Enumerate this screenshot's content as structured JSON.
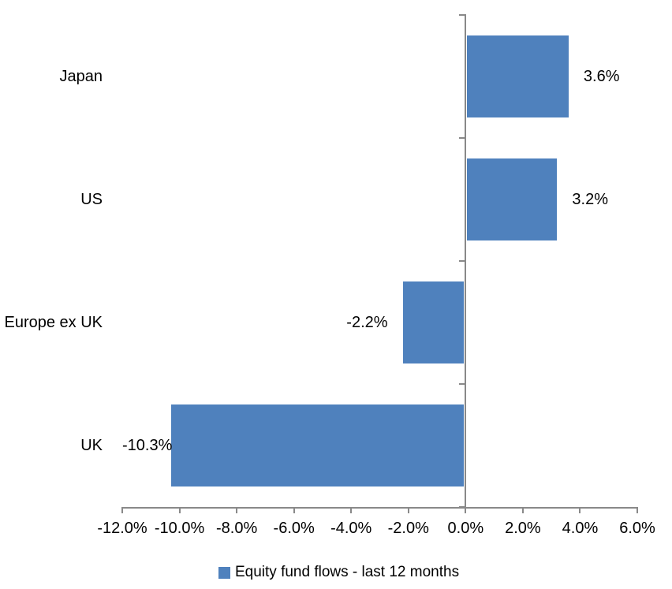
{
  "chart_data": {
    "type": "bar",
    "orientation": "horizontal",
    "title": "",
    "categories": [
      "Japan",
      "US",
      "Europe ex UK",
      "UK"
    ],
    "series": [
      {
        "name": "Equity fund flows - last 12 months",
        "values": [
          3.6,
          3.2,
          -2.2,
          -10.3
        ],
        "value_labels": [
          "3.6%",
          "3.2%",
          "-2.2%",
          "-10.3%"
        ],
        "color": "#4F81BD"
      }
    ],
    "xlim": [
      -12,
      6
    ],
    "x_tick_values": [
      -12,
      -10,
      -8,
      -6,
      -4,
      -2,
      0,
      2,
      4,
      6
    ],
    "x_tick_labels": [
      "-12.0%",
      "-10.0%",
      "-8.0%",
      "-6.0%",
      "-4.0%",
      "-2.0%",
      "0.0%",
      "2.0%",
      "4.0%",
      "6.0%"
    ],
    "grid": false,
    "legend_position": "bottom",
    "legend": [
      {
        "label": "Equity fund flows - last 12 months",
        "color": "#4F81BD"
      }
    ],
    "axis_color": "#898989",
    "text_color": "#000000"
  }
}
